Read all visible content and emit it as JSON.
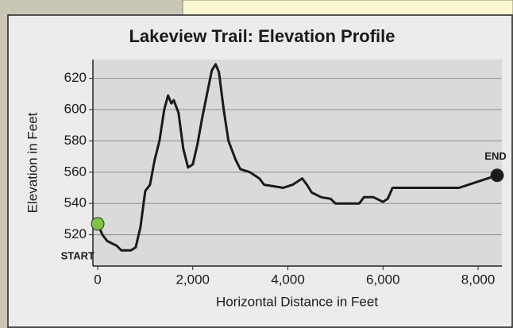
{
  "chart_data": {
    "type": "line",
    "title": "Lakeview Trail: Elevation Profile",
    "x_label": "Horizontal Distance in Feet",
    "y_label": "Elevation in Feet",
    "x": [
      0,
      100,
      200,
      400,
      500,
      700,
      800,
      900,
      1000,
      1100,
      1200,
      1300,
      1400,
      1480,
      1550,
      1600,
      1700,
      1800,
      1900,
      2000,
      2100,
      2200,
      2300,
      2400,
      2480,
      2550,
      2650,
      2750,
      2900,
      3000,
      3200,
      3400,
      3500,
      3700,
      3900,
      4100,
      4300,
      4400,
      4500,
      4700,
      4900,
      5000,
      5500,
      5600,
      5800,
      6000,
      6100,
      6200,
      7600,
      7800,
      8000,
      8200,
      8400
    ],
    "values": [
      527,
      520,
      516,
      513,
      510,
      510,
      512,
      525,
      548,
      552,
      568,
      580,
      600,
      609,
      604,
      606,
      598,
      575,
      563,
      565,
      578,
      595,
      610,
      625,
      629,
      624,
      600,
      580,
      568,
      562,
      560,
      556,
      552,
      551,
      550,
      552,
      556,
      552,
      547,
      544,
      543,
      540,
      540,
      544,
      544,
      541,
      543,
      550,
      550,
      552,
      554,
      556,
      558
    ],
    "color": "#1a1a1a",
    "xlim": [
      -100,
      8500
    ],
    "ylim": [
      500,
      632
    ],
    "xticks": [
      {
        "value": 0,
        "label": "0"
      },
      {
        "value": 2000,
        "label": "2,000"
      },
      {
        "value": 4000,
        "label": "4,000"
      },
      {
        "value": 6000,
        "label": "6,000"
      },
      {
        "value": 8000,
        "label": "8,000"
      }
    ],
    "yticks": [
      520,
      540,
      560,
      580,
      600,
      620
    ],
    "grid": true,
    "annotations": [
      {
        "text": "START",
        "x": 0,
        "y": 527,
        "color": "#7dc242"
      },
      {
        "text": "END",
        "x": 8400,
        "y": 558,
        "color": "#1a1a1a"
      }
    ]
  }
}
